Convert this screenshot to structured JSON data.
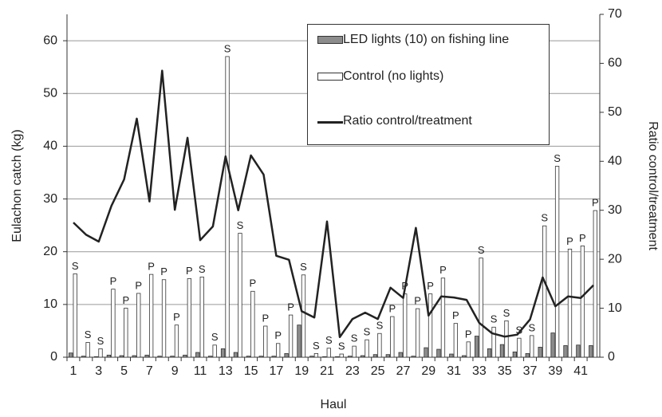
{
  "chart_data": {
    "type": "bar",
    "x_label": "Haul",
    "y_label": "Eulachon catch (kg)",
    "y2_label": "Ratio control/treatment",
    "categories": [
      "1",
      null,
      "3",
      null,
      "5",
      null,
      "7",
      null,
      "9",
      null,
      "11",
      null,
      "13",
      null,
      "15",
      null,
      "17",
      null,
      "19",
      null,
      "21",
      null,
      "23",
      null,
      "25",
      null,
      "27",
      null,
      "29",
      null,
      "31",
      null,
      "33",
      null,
      "35",
      null,
      "37",
      null,
      "39",
      null,
      "41",
      null
    ],
    "series": [
      {
        "name": "LED lights (10) on fishing line",
        "color": "#8c8c8c",
        "values": [
          0.8,
          0.2,
          0.1,
          0.4,
          0.3,
          0.3,
          0.4,
          0.2,
          0.2,
          0.4,
          0.9,
          0.2,
          1.6,
          0.9,
          0.2,
          0.2,
          0.2,
          0.7,
          6.1,
          0.2,
          0.1,
          0.1,
          0.2,
          0.3,
          0.5,
          0.5,
          0.9,
          0.2,
          1.8,
          1.5,
          0.6,
          0.3,
          4.0,
          1.6,
          2.4,
          1.0,
          0.7,
          1.9,
          4.6,
          2.2,
          2.3,
          2.2
        ]
      },
      {
        "name": "Control (no lights)",
        "color": "#ffffff",
        "values": [
          15.8,
          2.8,
          1.6,
          12.9,
          9.3,
          12.1,
          15.7,
          14.7,
          6.1,
          14.9,
          15.2,
          2.3,
          57,
          23.5,
          12.5,
          5.9,
          2.6,
          8.0,
          15.6,
          0.7,
          1.7,
          0.6,
          2.1,
          3.3,
          4.5,
          7.7,
          12.0,
          9.2,
          12.0,
          15.0,
          6.4,
          2.9,
          18.8,
          5.7,
          6.9,
          3.6,
          4.1,
          24.9,
          36.2,
          20.5,
          21.1,
          27.8
        ]
      },
      {
        "name": "Ratio control/treatment",
        "type": "line",
        "axis": "y2",
        "color": "#222222",
        "values": [
          27.5,
          25,
          23.6,
          30.9,
          36.3,
          48.7,
          31.8,
          58.5,
          30.1,
          44.8,
          23.9,
          26.7,
          41,
          30,
          41.2,
          37.3,
          20.7,
          19.9,
          9.4,
          8.1,
          27.7,
          4.1,
          7.8,
          9.1,
          7.8,
          14.2,
          12.1,
          26.4,
          8.5,
          12.4,
          12.2,
          11.7,
          7,
          4.9,
          4.2,
          4.6,
          7.7,
          16.3,
          10.4,
          12.4,
          12.1,
          14.7
        ]
      }
    ],
    "annotations": [
      "S",
      "S",
      "S",
      "P",
      "P",
      "P",
      "P",
      "P",
      "P",
      "P",
      "S",
      "S",
      "S",
      "S",
      "P",
      "P",
      "P",
      "P",
      "S",
      "S",
      "S",
      "S",
      "S",
      "S",
      "S",
      "P",
      "P",
      "P",
      "P",
      "P",
      "P",
      "P",
      "S",
      "S",
      "S",
      "S",
      "S",
      "S",
      "S",
      "P",
      "P",
      "P"
    ],
    "ylim": [
      0,
      65
    ],
    "yticks": [
      0,
      10,
      20,
      30,
      40,
      50,
      60
    ],
    "y2lim": [
      0,
      70
    ],
    "y2ticks": [
      0,
      10,
      20,
      30,
      40,
      50,
      60,
      70
    ],
    "grid": true
  }
}
